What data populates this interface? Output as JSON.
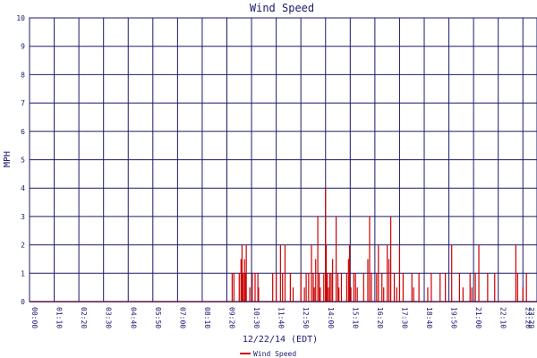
{
  "chart_data": {
    "type": "bar",
    "title": "Wind Speed",
    "ylabel": "MPH",
    "xlabel": "12/22/14 (EDT)",
    "ylim": [
      0,
      10
    ],
    "y_ticks": [
      "0",
      "1",
      "2",
      "3",
      "4",
      "5",
      "6",
      "7",
      "8",
      "9",
      "10"
    ],
    "x_tick_labels": [
      "00:00",
      "01:10",
      "02:20",
      "03:30",
      "04:40",
      "05:50",
      "07:00",
      "08:10",
      "09:20",
      "10:30",
      "11:40",
      "12:50",
      "14:00",
      "15:10",
      "16:20",
      "17:30",
      "18:40",
      "19:50",
      "21:00",
      "22:10",
      "23:20",
      "23:29"
    ],
    "grid": true,
    "line_color": "#cc0000",
    "grid_color": "#1a1a6e",
    "legend_position": "bottom-center",
    "series": [
      {
        "name": "Wind Speed",
        "time_minutes": [
          575,
          580,
          595,
          600,
          603,
          606,
          610,
          612,
          615,
          625,
          632,
          640,
          648,
          650,
          690,
          700,
          712,
          718,
          725,
          740,
          748,
          770,
          780,
          785,
          792,
          800,
          805,
          808,
          812,
          818,
          822,
          825,
          835,
          840,
          842,
          845,
          848,
          852,
          856,
          860,
          870,
          875,
          878,
          885,
          900,
          905,
          908,
          912,
          920,
          925,
          930,
          948,
          960,
          965,
          970,
          985,
          990,
          1000,
          1005,
          1015,
          1020,
          1025,
          1035,
          1042,
          1050,
          1060,
          1085,
          1090,
          1105,
          1130,
          1140,
          1165,
          1180,
          1198,
          1220,
          1230,
          1250,
          1255,
          1265,
          1275,
          1300,
          1320,
          1380,
          1385,
          1400,
          1410
        ],
        "values": [
          1,
          1,
          1,
          1.5,
          2,
          1,
          1.5,
          1,
          2,
          0.5,
          1,
          1,
          1,
          0.5,
          1,
          1,
          2,
          1,
          2,
          1,
          0.5,
          1,
          0.5,
          1,
          1,
          2,
          1,
          0.5,
          1.5,
          3,
          1,
          0.5,
          1,
          4,
          2,
          1,
          0.5,
          1,
          1,
          1.5,
          3,
          1,
          0.5,
          1,
          1,
          1.5,
          2,
          0.5,
          1,
          1,
          0.5,
          1,
          1.5,
          3,
          1,
          1,
          2,
          1,
          0.5,
          2,
          1.5,
          3,
          1,
          0.5,
          2,
          1,
          1,
          0.5,
          1,
          0.5,
          1,
          1,
          1,
          2,
          1,
          0.5,
          1,
          0.5,
          1,
          2,
          1,
          1,
          2,
          1,
          0.5,
          1
        ]
      }
    ]
  }
}
